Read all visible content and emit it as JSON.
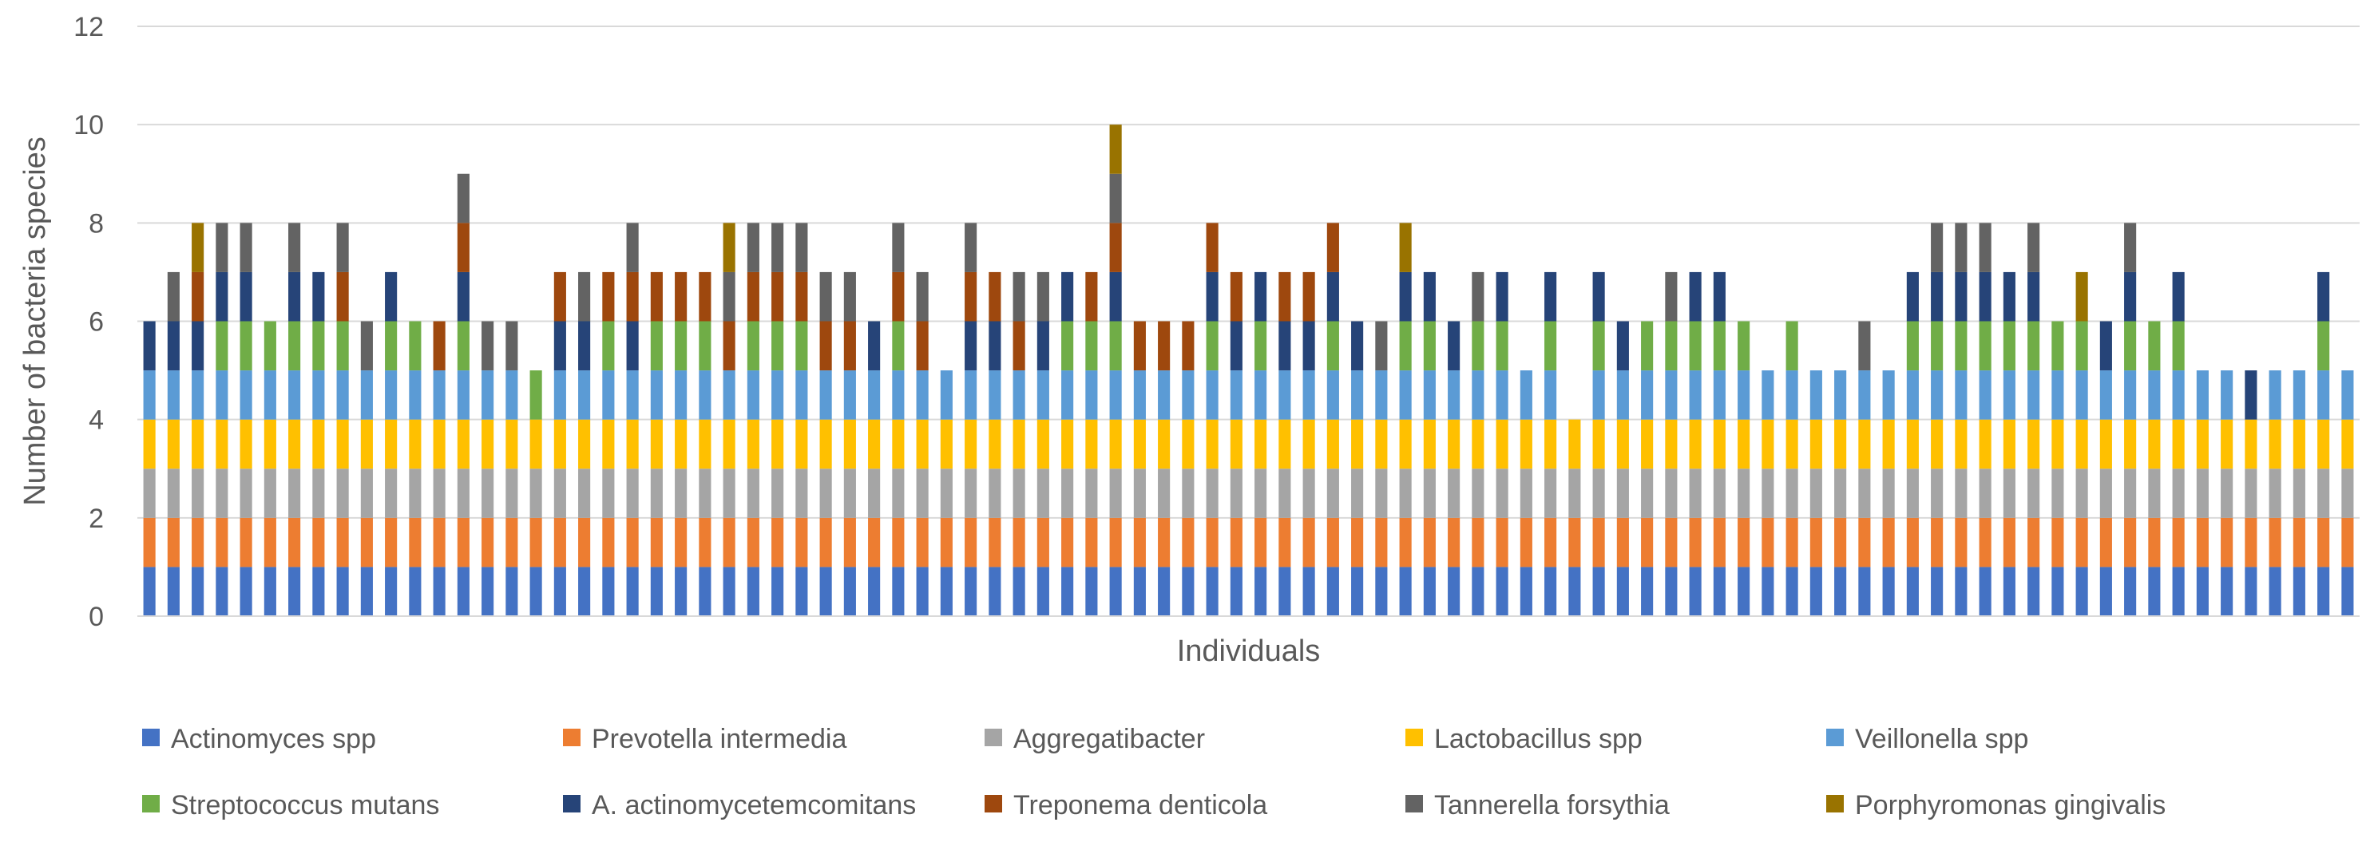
{
  "chart_data": {
    "type": "bar",
    "stacked": true,
    "title": "",
    "xlabel": "Individuals",
    "ylabel": "Number of bacteria species",
    "ylim": [
      0,
      12
    ],
    "yticks": [
      0,
      2,
      4,
      6,
      8,
      10,
      12
    ],
    "grid": true,
    "legend_position": "bottom",
    "series": [
      {
        "name": "Actinomyces spp",
        "color": "#4472C4"
      },
      {
        "name": "Prevotella intermedia",
        "color": "#ED7D31"
      },
      {
        "name": "Aggregatibacter",
        "color": "#A5A5A5"
      },
      {
        "name": "Lactobacillus spp",
        "color": "#FFC000"
      },
      {
        "name": "Veillonella spp",
        "color": "#5B9BD5"
      },
      {
        "name": "Streptococcus mutans",
        "color": "#70AD47"
      },
      {
        "name": "A. actinomycetemcomitans",
        "color": "#264478"
      },
      {
        "name": "Treponema denticola",
        "color": "#9E480E"
      },
      {
        "name": "Tannerella forsythia",
        "color": "#636363"
      },
      {
        "name": "Porphyromonas gingivalis",
        "color": "#997300"
      }
    ],
    "individuals": [
      [
        0,
        1,
        2,
        3,
        4,
        6
      ],
      [
        0,
        1,
        2,
        3,
        4,
        6,
        8
      ],
      [
        0,
        1,
        2,
        3,
        4,
        6,
        7,
        9
      ],
      [
        0,
        1,
        2,
        3,
        4,
        5,
        6,
        8
      ],
      [
        0,
        1,
        2,
        3,
        4,
        5,
        6,
        8
      ],
      [
        0,
        1,
        2,
        3,
        4,
        5
      ],
      [
        0,
        1,
        2,
        3,
        4,
        5,
        6,
        8
      ],
      [
        0,
        1,
        2,
        3,
        4,
        5,
        6
      ],
      [
        0,
        1,
        2,
        3,
        4,
        5,
        7,
        8
      ],
      [
        0,
        1,
        2,
        3,
        4,
        8
      ],
      [
        0,
        1,
        2,
        3,
        4,
        5,
        6
      ],
      [
        0,
        1,
        2,
        3,
        4,
        5
      ],
      [
        0,
        1,
        2,
        3,
        4,
        7
      ],
      [
        0,
        1,
        2,
        3,
        4,
        5,
        6,
        7,
        8
      ],
      [
        0,
        1,
        2,
        3,
        4,
        8
      ],
      [
        0,
        1,
        2,
        3,
        4,
        8
      ],
      [
        0,
        1,
        2,
        3,
        5
      ],
      [
        0,
        1,
        2,
        3,
        4,
        6,
        7
      ],
      [
        0,
        1,
        2,
        3,
        4,
        6,
        8
      ],
      [
        0,
        1,
        2,
        3,
        4,
        5,
        7
      ],
      [
        0,
        1,
        2,
        3,
        4,
        6,
        7,
        8
      ],
      [
        0,
        1,
        2,
        3,
        4,
        5,
        7
      ],
      [
        0,
        1,
        2,
        3,
        4,
        5,
        7
      ],
      [
        0,
        1,
        2,
        3,
        4,
        5,
        7
      ],
      [
        0,
        1,
        2,
        3,
        4,
        7,
        8,
        9
      ],
      [
        0,
        1,
        2,
        3,
        4,
        5,
        7,
        8
      ],
      [
        0,
        1,
        2,
        3,
        4,
        5,
        7,
        8
      ],
      [
        0,
        1,
        2,
        3,
        4,
        5,
        7,
        8
      ],
      [
        0,
        1,
        2,
        3,
        4,
        7,
        8
      ],
      [
        0,
        1,
        2,
        3,
        4,
        7,
        8
      ],
      [
        0,
        1,
        2,
        3,
        4,
        6
      ],
      [
        0,
        1,
        2,
        3,
        4,
        5,
        7,
        8
      ],
      [
        0,
        1,
        2,
        3,
        4,
        7,
        8
      ],
      [
        0,
        1,
        2,
        3,
        4
      ],
      [
        0,
        1,
        2,
        3,
        4,
        6,
        7,
        8
      ],
      [
        0,
        1,
        2,
        3,
        4,
        6,
        7
      ],
      [
        0,
        1,
        2,
        3,
        4,
        7,
        8
      ],
      [
        0,
        1,
        2,
        3,
        4,
        6,
        8
      ],
      [
        0,
        1,
        2,
        3,
        4,
        5,
        6
      ],
      [
        0,
        1,
        2,
        3,
        4,
        5,
        7
      ],
      [
        0,
        1,
        2,
        3,
        4,
        5,
        6,
        7,
        8,
        9
      ],
      [
        0,
        1,
        2,
        3,
        4,
        7
      ],
      [
        0,
        1,
        2,
        3,
        4,
        7
      ],
      [
        0,
        1,
        2,
        3,
        4,
        7
      ],
      [
        0,
        1,
        2,
        3,
        4,
        5,
        6,
        7
      ],
      [
        0,
        1,
        2,
        3,
        4,
        6,
        7
      ],
      [
        0,
        1,
        2,
        3,
        4,
        5,
        6
      ],
      [
        0,
        1,
        2,
        3,
        4,
        6,
        7
      ],
      [
        0,
        1,
        2,
        3,
        4,
        6,
        7
      ],
      [
        0,
        1,
        2,
        3,
        4,
        5,
        6,
        7
      ],
      [
        0,
        1,
        2,
        3,
        4,
        6
      ],
      [
        0,
        1,
        2,
        3,
        4,
        8
      ],
      [
        0,
        1,
        2,
        3,
        4,
        5,
        6,
        9
      ],
      [
        0,
        1,
        2,
        3,
        4,
        5,
        6
      ],
      [
        0,
        1,
        2,
        3,
        4,
        6
      ],
      [
        0,
        1,
        2,
        3,
        4,
        5,
        8
      ],
      [
        0,
        1,
        2,
        3,
        4,
        5,
        6
      ],
      [
        0,
        1,
        2,
        3,
        4
      ],
      [
        0,
        1,
        2,
        3,
        4,
        5,
        6
      ],
      [
        0,
        1,
        2,
        3
      ],
      [
        0,
        1,
        2,
        3,
        4,
        5,
        6
      ],
      [
        0,
        1,
        2,
        3,
        4,
        6
      ],
      [
        0,
        1,
        2,
        3,
        4,
        5
      ],
      [
        0,
        1,
        2,
        3,
        4,
        5,
        8
      ],
      [
        0,
        1,
        2,
        3,
        4,
        5,
        6
      ],
      [
        0,
        1,
        2,
        3,
        4,
        5,
        6
      ],
      [
        0,
        1,
        2,
        3,
        4,
        5
      ],
      [
        0,
        1,
        2,
        3,
        4
      ],
      [
        0,
        1,
        2,
        3,
        4,
        5
      ],
      [
        0,
        1,
        2,
        3,
        4
      ],
      [
        0,
        1,
        2,
        3,
        4
      ],
      [
        0,
        1,
        2,
        3,
        4,
        8
      ],
      [
        0,
        1,
        2,
        3,
        4
      ],
      [
        0,
        1,
        2,
        3,
        4,
        5,
        6
      ],
      [
        0,
        1,
        2,
        3,
        4,
        5,
        6,
        8
      ],
      [
        0,
        1,
        2,
        3,
        4,
        5,
        6,
        8
      ],
      [
        0,
        1,
        2,
        3,
        4,
        5,
        6,
        8
      ],
      [
        0,
        1,
        2,
        3,
        4,
        5,
        6
      ],
      [
        0,
        1,
        2,
        3,
        4,
        5,
        6,
        8
      ],
      [
        0,
        1,
        2,
        3,
        4,
        5
      ],
      [
        0,
        1,
        2,
        3,
        4,
        5,
        9
      ],
      [
        0,
        1,
        2,
        3,
        4,
        6
      ],
      [
        0,
        1,
        2,
        3,
        4,
        5,
        6,
        8
      ],
      [
        0,
        1,
        2,
        3,
        4,
        5
      ],
      [
        0,
        1,
        2,
        3,
        4,
        5,
        6
      ],
      [
        0,
        1,
        2,
        3,
        4
      ],
      [
        0,
        1,
        2,
        3,
        4
      ],
      [
        0,
        1,
        2,
        3,
        6
      ],
      [
        0,
        1,
        2,
        3,
        4
      ],
      [
        0,
        1,
        2,
        3,
        4
      ],
      [
        0,
        1,
        2,
        3,
        4,
        5,
        6
      ],
      [
        0,
        1,
        2,
        3,
        4
      ]
    ]
  },
  "legend": {
    "row1": [
      "Actinomyces spp",
      "Prevotella intermedia",
      "Aggregatibacter",
      "Lactobacillus spp",
      "Veillonella spp"
    ],
    "row2": [
      "Streptococcus mutans",
      "A. actinomycetemcomitans",
      "Treponema denticola",
      "Tannerella forsythia",
      "Porphyromonas gingivalis"
    ]
  }
}
